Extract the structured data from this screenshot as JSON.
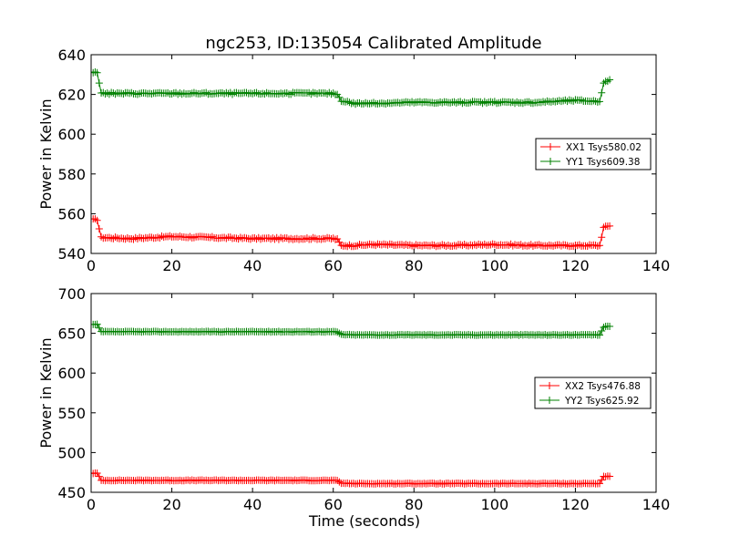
{
  "title": "ngc253, ID:135054 Calibrated Amplitude",
  "colors": {
    "XX": "#ff0000",
    "YY": "#008000",
    "axes": "#000000",
    "background": "#ffffff"
  },
  "chart_data": [
    {
      "type": "line",
      "title": "ngc253, ID:135054 Calibrated Amplitude",
      "xlabel": "",
      "ylabel": "Power in Kelvin",
      "xlim": [
        0,
        140
      ],
      "ylim": [
        540,
        640
      ],
      "xticks": [
        "0",
        "20",
        "40",
        "60",
        "80",
        "100",
        "120",
        "140"
      ],
      "yticks": [
        "540",
        "560",
        "580",
        "600",
        "620",
        "640"
      ],
      "grid": false,
      "legend_position": "center-right",
      "marker": "plus",
      "series": [
        {
          "name": "XX1 Tsys580.02",
          "color": "#ff0000",
          "x": [
            0.5,
            1.5,
            2.5,
            3,
            10,
            20,
            30,
            40,
            50,
            60,
            61,
            62,
            65,
            70,
            80,
            90,
            100,
            110,
            120,
            126,
            127,
            128.5
          ],
          "y": [
            557,
            557,
            548,
            548,
            547.5,
            548.5,
            548,
            547.5,
            547.5,
            547.5,
            547,
            544,
            544,
            544.5,
            544,
            544,
            544.5,
            544,
            544,
            544,
            553,
            554
          ]
        },
        {
          "name": "YY1 Tsys609.38",
          "color": "#008000",
          "x": [
            0.5,
            1.5,
            2.5,
            3,
            10,
            20,
            30,
            40,
            50,
            60,
            61,
            62,
            65,
            70,
            80,
            90,
            100,
            110,
            120,
            126,
            127,
            128.5
          ],
          "y": [
            631,
            631,
            621,
            620.5,
            620.5,
            620.5,
            620.5,
            620.5,
            620.5,
            620.5,
            620,
            617,
            615.5,
            615.5,
            616,
            616,
            616,
            616,
            617,
            616.5,
            626,
            627
          ]
        }
      ]
    },
    {
      "type": "line",
      "title": "",
      "xlabel": "Time (seconds)",
      "ylabel": "Power in Kelvin",
      "xlim": [
        0,
        140
      ],
      "ylim": [
        450,
        700
      ],
      "xticks": [
        "0",
        "20",
        "40",
        "60",
        "80",
        "100",
        "120",
        "140"
      ],
      "yticks": [
        "450",
        "500",
        "550",
        "600",
        "650",
        "700"
      ],
      "grid": false,
      "legend_position": "center-right",
      "marker": "plus",
      "series": [
        {
          "name": "XX2 Tsys476.88",
          "color": "#ff0000",
          "x": [
            0.5,
            1.5,
            2.5,
            3,
            10,
            20,
            30,
            40,
            50,
            60,
            61,
            62,
            65,
            70,
            80,
            90,
            100,
            110,
            120,
            126,
            127,
            128.5
          ],
          "y": [
            474,
            474,
            465,
            465,
            465,
            465,
            465,
            465,
            465,
            465,
            464.5,
            461.5,
            461,
            461,
            461,
            461,
            461,
            461,
            461,
            461,
            470,
            470
          ]
        },
        {
          "name": "YY2 Tsys625.92",
          "color": "#008000",
          "x": [
            0.5,
            1.5,
            2.5,
            3,
            10,
            20,
            30,
            40,
            50,
            60,
            61,
            62,
            65,
            70,
            80,
            90,
            100,
            110,
            120,
            126,
            127,
            128.5
          ],
          "y": [
            661,
            661,
            652,
            652,
            652,
            652,
            652,
            652,
            652,
            652,
            651.5,
            648.5,
            648,
            648,
            648,
            648,
            648,
            648,
            648,
            648,
            658,
            659
          ]
        }
      ]
    }
  ]
}
